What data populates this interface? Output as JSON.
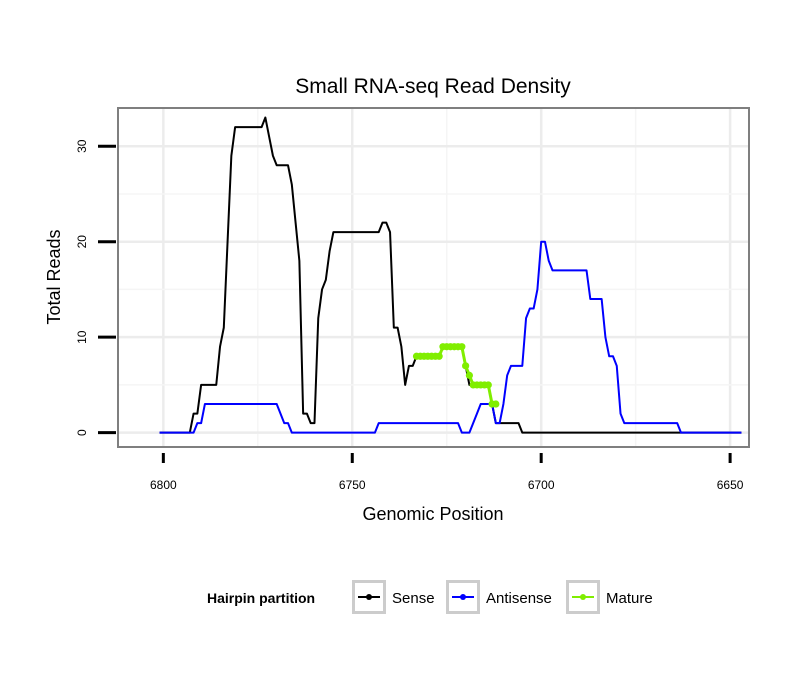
{
  "chart_data": {
    "type": "line",
    "title": "Small RNA-seq Read Density",
    "xlabel": "Genomic Position",
    "ylabel": "Total Reads",
    "xlim": [
      6812,
      6645
    ],
    "x_reversed": true,
    "ylim": [
      -1.5,
      34
    ],
    "xticks": [
      6800,
      6750,
      6700,
      6650
    ],
    "xtick_labels": [
      "6800",
      "6750",
      "6700",
      "6650"
    ],
    "yticks": [
      0,
      10,
      20,
      30
    ],
    "ytick_labels": [
      "0",
      "10",
      "20",
      "30"
    ],
    "grid": true,
    "legend": {
      "title": "Hairpin partition",
      "position": "bottom",
      "entries": [
        "Sense",
        "Antisense",
        "Mature"
      ]
    },
    "series": [
      {
        "name": "Sense",
        "color": "#000000",
        "markers": false,
        "points": [
          [
            6801,
            0
          ],
          [
            6793,
            0
          ],
          [
            6792,
            2
          ],
          [
            6791,
            2
          ],
          [
            6790,
            5
          ],
          [
            6786,
            5
          ],
          [
            6785,
            9
          ],
          [
            6784,
            11
          ],
          [
            6783,
            20
          ],
          [
            6782,
            29
          ],
          [
            6781,
            32
          ],
          [
            6774,
            32
          ],
          [
            6773,
            33
          ],
          [
            6772,
            31
          ],
          [
            6771,
            29
          ],
          [
            6770,
            28
          ],
          [
            6767,
            28
          ],
          [
            6766,
            26
          ],
          [
            6765,
            22
          ],
          [
            6764,
            18
          ],
          [
            6763,
            2
          ],
          [
            6762,
            2
          ],
          [
            6761,
            1
          ],
          [
            6760,
            1
          ],
          [
            6759,
            12
          ],
          [
            6758,
            15
          ],
          [
            6757,
            16
          ],
          [
            6756,
            19
          ],
          [
            6755,
            21
          ],
          [
            6743,
            21
          ],
          [
            6742,
            22
          ],
          [
            6741,
            22
          ],
          [
            6740,
            21
          ],
          [
            6739,
            11
          ],
          [
            6738,
            11
          ],
          [
            6737,
            9
          ],
          [
            6736,
            5
          ],
          [
            6735,
            7
          ],
          [
            6734,
            7
          ],
          [
            6733,
            8
          ],
          [
            6727,
            8
          ],
          [
            6726,
            9
          ],
          [
            6721,
            9
          ],
          [
            6720,
            7
          ],
          [
            6719,
            5
          ],
          [
            6714,
            5
          ],
          [
            6713,
            3
          ],
          [
            6712,
            1
          ],
          [
            6706,
            1
          ],
          [
            6705,
            0
          ],
          [
            6647,
            0
          ]
        ]
      },
      {
        "name": "Antisense",
        "color": "#0000ff",
        "markers": false,
        "points": [
          [
            6801,
            0
          ],
          [
            6792,
            0
          ],
          [
            6791,
            1
          ],
          [
            6790,
            1
          ],
          [
            6789,
            3
          ],
          [
            6770,
            3
          ],
          [
            6768,
            1
          ],
          [
            6767,
            1
          ],
          [
            6766,
            0
          ],
          [
            6744,
            0
          ],
          [
            6743,
            1
          ],
          [
            6722,
            1
          ],
          [
            6721,
            0
          ],
          [
            6719,
            0
          ],
          [
            6717,
            2
          ],
          [
            6716,
            3
          ],
          [
            6713,
            3
          ],
          [
            6712,
            1
          ],
          [
            6711,
            1
          ],
          [
            6710,
            3
          ],
          [
            6709,
            6
          ],
          [
            6708,
            7
          ],
          [
            6705,
            7
          ],
          [
            6704,
            12
          ],
          [
            6703,
            13
          ],
          [
            6702,
            13
          ],
          [
            6701,
            15
          ],
          [
            6700,
            20
          ],
          [
            6699,
            20
          ],
          [
            6698,
            18
          ],
          [
            6697,
            17
          ],
          [
            6688,
            17
          ],
          [
            6687,
            14
          ],
          [
            6684,
            14
          ],
          [
            6683,
            10
          ],
          [
            6682,
            8
          ],
          [
            6681,
            8
          ],
          [
            6680,
            7
          ],
          [
            6679,
            2
          ],
          [
            6678,
            1
          ],
          [
            6664,
            1
          ],
          [
            6663,
            0
          ],
          [
            6647,
            0
          ]
        ]
      },
      {
        "name": "Mature",
        "color": "#80ee00",
        "markers": true,
        "points": [
          [
            6733,
            8
          ],
          [
            6732,
            8
          ],
          [
            6731,
            8
          ],
          [
            6730,
            8
          ],
          [
            6729,
            8
          ],
          [
            6728,
            8
          ],
          [
            6727,
            8
          ],
          [
            6726,
            9
          ],
          [
            6725,
            9
          ],
          [
            6724,
            9
          ],
          [
            6723,
            9
          ],
          [
            6722,
            9
          ],
          [
            6721,
            9
          ],
          [
            6720,
            7
          ],
          [
            6719,
            6
          ],
          [
            6718,
            5
          ],
          [
            6717,
            5
          ],
          [
            6716,
            5
          ],
          [
            6715,
            5
          ],
          [
            6714,
            5
          ],
          [
            6713,
            3
          ],
          [
            6712,
            3
          ]
        ]
      }
    ]
  }
}
